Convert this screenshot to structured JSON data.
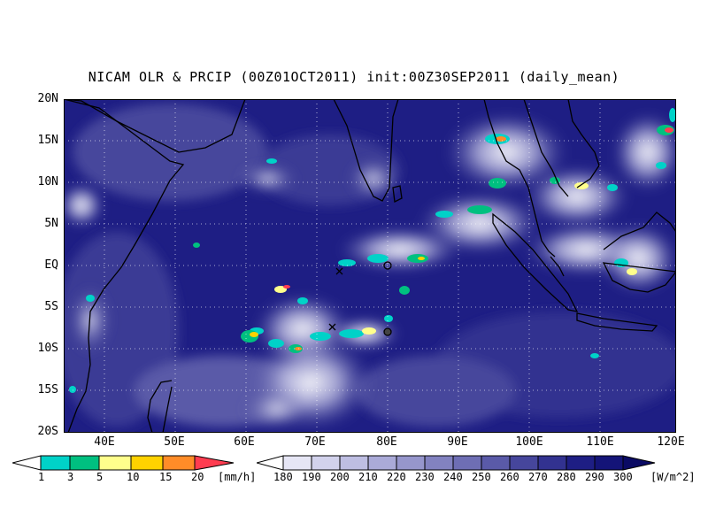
{
  "title": "NICAM OLR & PRCIP (00Z01OCT2011) init:00Z30SEP2011 (daily_mean)",
  "map": {
    "lat_labels": [
      "20N",
      "15N",
      "10N",
      "5N",
      "EQ",
      "5S",
      "10S",
      "15S",
      "20S"
    ],
    "lon_labels": [
      "40E",
      "50E",
      "60E",
      "70E",
      "80E",
      "90E",
      "100E",
      "110E",
      "120E"
    ],
    "colors": {
      "ocean_olr_low": "#1a237e",
      "ocean_olr_mid": "#3949ab",
      "cloud_white": "#ffffff",
      "coastline": "#000000"
    }
  },
  "precip_colorbar": {
    "labels": [
      "1",
      "3",
      "5",
      "10",
      "15",
      "20"
    ],
    "unit": "[mm/h]",
    "colors": [
      "#ffffff",
      "#00d2c8",
      "#00c080",
      "#ffff8c",
      "#ffd200",
      "#ff8c28",
      "#ff3c50"
    ]
  },
  "olr_colorbar": {
    "labels": [
      "180",
      "190",
      "200",
      "210",
      "220",
      "230",
      "240",
      "250",
      "260",
      "270",
      "280",
      "290",
      "300"
    ],
    "unit": "[W/m^2]",
    "colors": [
      "#ffffff",
      "#e6e6f5",
      "#d2d2ec",
      "#bebee2",
      "#aaaad8",
      "#9696cc",
      "#8282c0",
      "#6e6eb4",
      "#5a5aa8",
      "#46469c",
      "#323290",
      "#1e1e84",
      "#141478",
      "#0a0a64"
    ]
  }
}
